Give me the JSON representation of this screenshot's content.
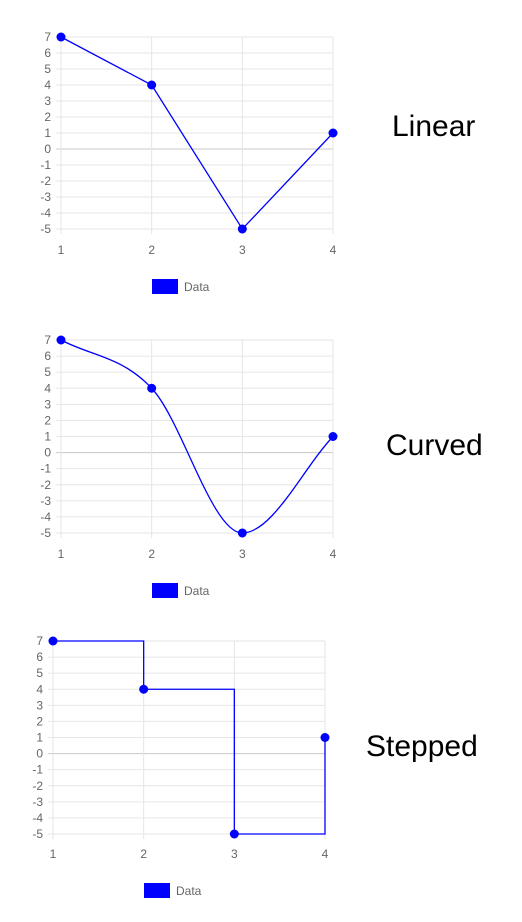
{
  "chart_data": [
    {
      "type": "line",
      "interpolation": "linear",
      "side_label": "Linear",
      "x": [
        1,
        2,
        3,
        4
      ],
      "x_tick_labels": [
        "1",
        "2",
        "3",
        "4"
      ],
      "y_tick_labels": [
        "7",
        "6",
        "5",
        "4",
        "3",
        "2",
        "1",
        "0",
        "-1",
        "-2",
        "-3",
        "-4",
        "-5"
      ],
      "ylim": [
        -5,
        7
      ],
      "grid": true,
      "legend_position": "bottom",
      "series": [
        {
          "name": "Data",
          "values": [
            7,
            4,
            -5,
            1
          ],
          "color": "#0000ff"
        }
      ]
    },
    {
      "type": "line",
      "interpolation": "curved",
      "side_label": "Curved",
      "x": [
        1,
        2,
        3,
        4
      ],
      "x_tick_labels": [
        "1",
        "2",
        "3",
        "4"
      ],
      "y_tick_labels": [
        "7",
        "6",
        "5",
        "4",
        "3",
        "2",
        "1",
        "0",
        "-1",
        "-2",
        "-3",
        "-4",
        "-5"
      ],
      "ylim": [
        -5,
        7
      ],
      "grid": true,
      "legend_position": "bottom",
      "series": [
        {
          "name": "Data",
          "values": [
            7,
            4,
            -5,
            1
          ],
          "color": "#0000ff"
        }
      ]
    },
    {
      "type": "line",
      "interpolation": "stepped",
      "side_label": "Stepped",
      "x": [
        1,
        2,
        3,
        4
      ],
      "x_tick_labels": [
        "1",
        "2",
        "3",
        "4"
      ],
      "y_tick_labels": [
        "7",
        "6",
        "5",
        "4",
        "3",
        "2",
        "1",
        "0",
        "-1",
        "-2",
        "-3",
        "-4",
        "-5"
      ],
      "ylim": [
        -5,
        7
      ],
      "grid": true,
      "legend_position": "bottom",
      "series": [
        {
          "name": "Data",
          "values": [
            7,
            4,
            -5,
            1
          ],
          "color": "#0000ff"
        }
      ]
    }
  ],
  "colors": {
    "grid": "#e6e6e6",
    "zero_line": "#c8c8c8",
    "tick_text": "#666666",
    "side_label": "#000000"
  }
}
